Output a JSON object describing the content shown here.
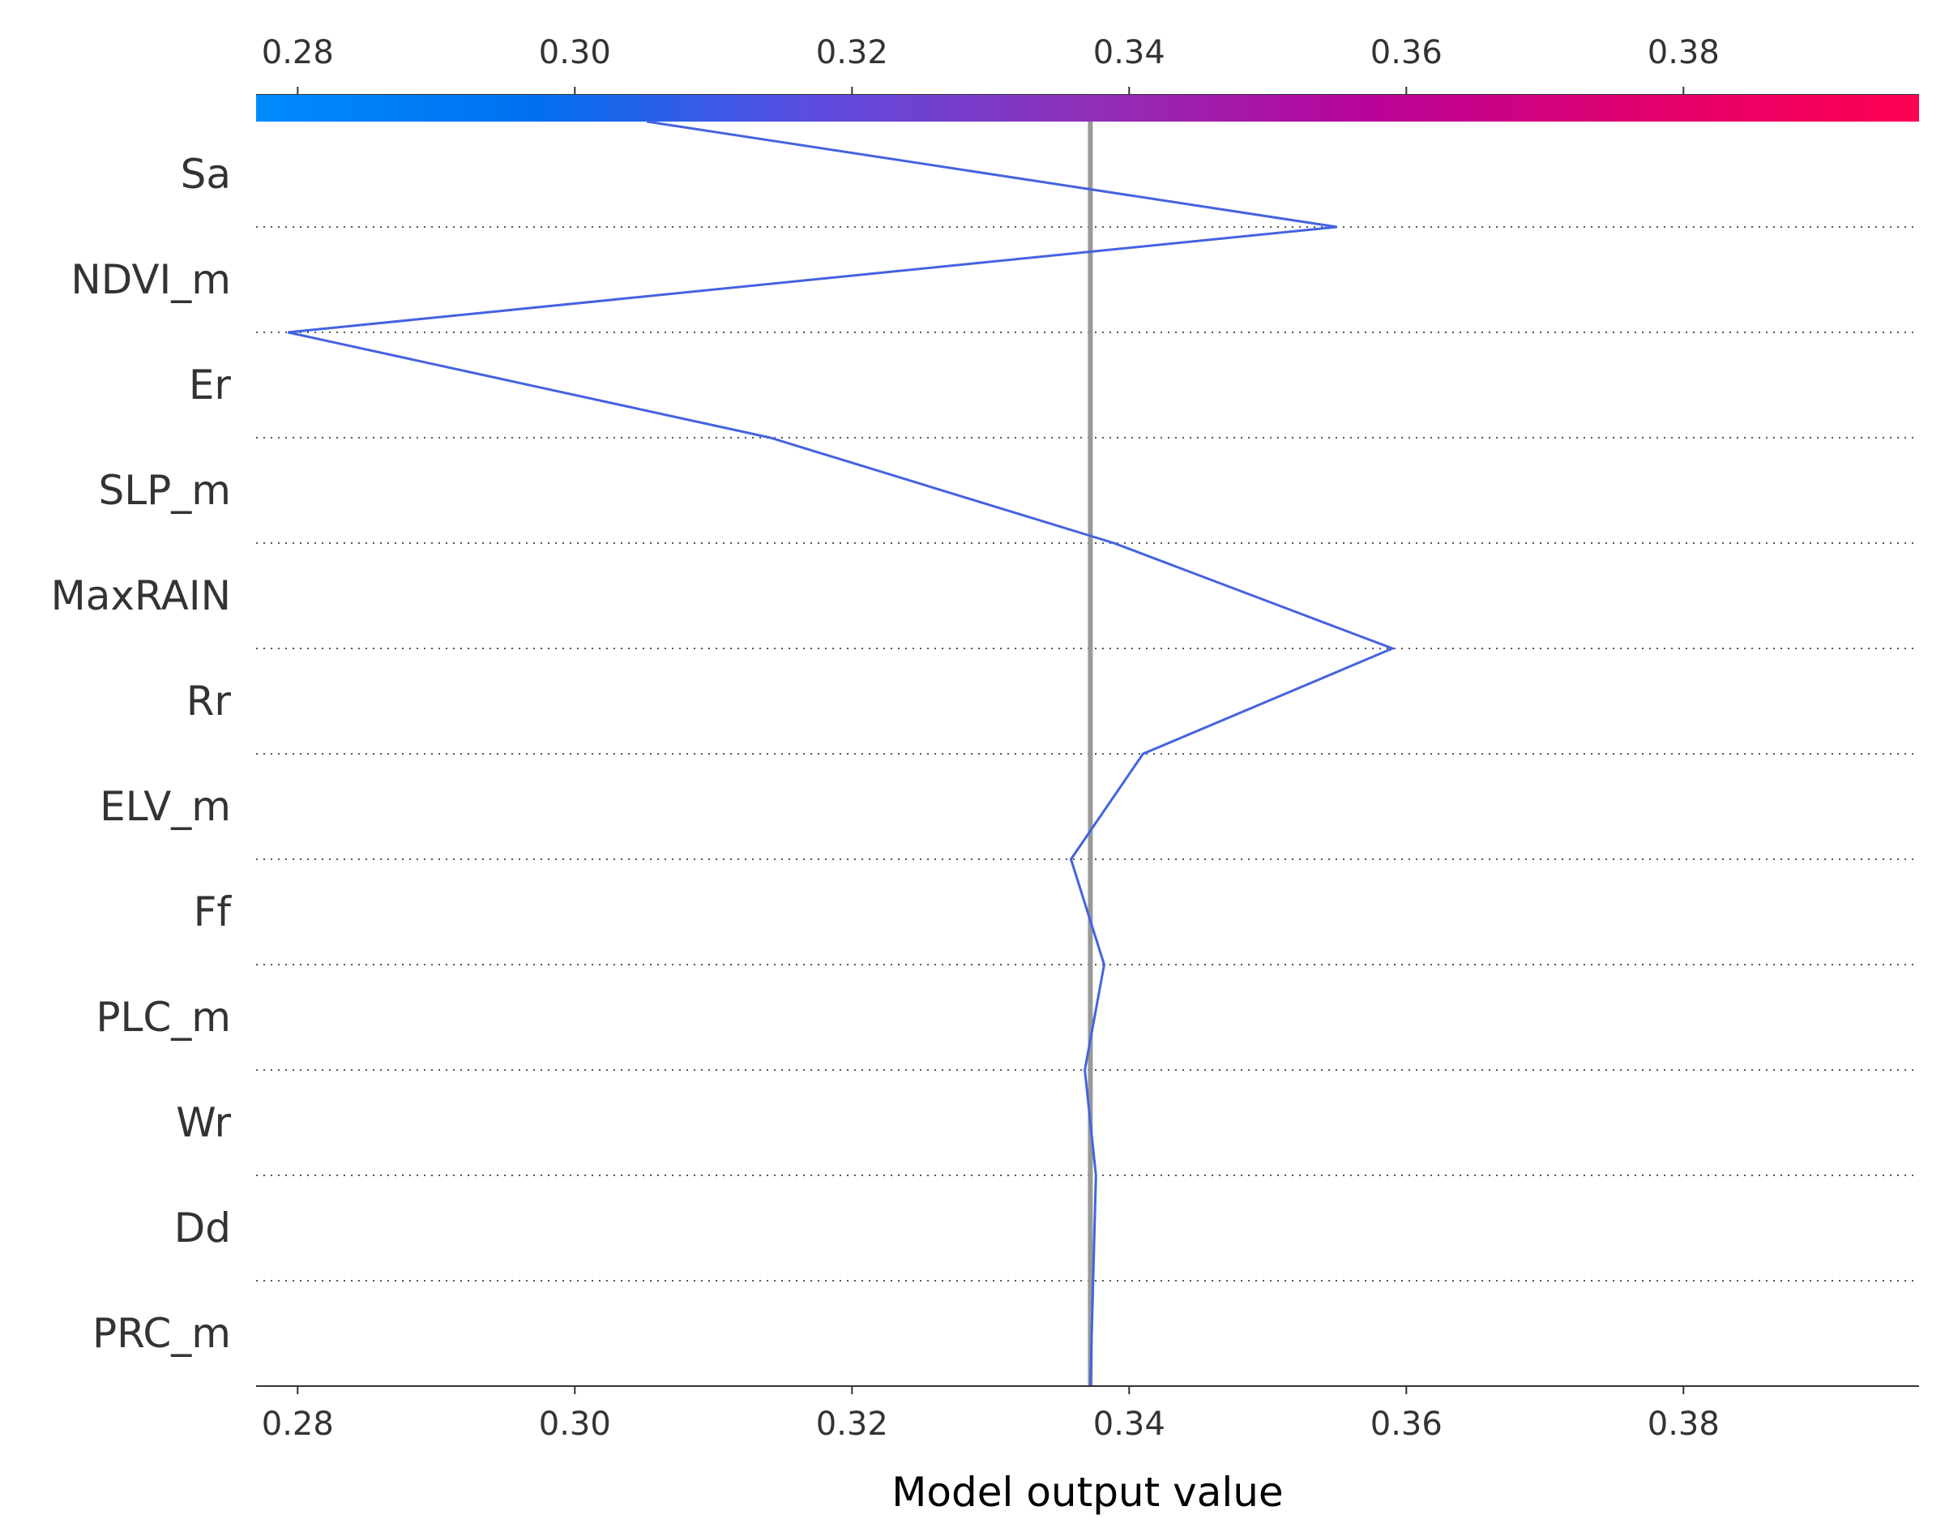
{
  "chart_data": {
    "type": "line",
    "title": "",
    "xlabel": "Model output value",
    "ylabel": "",
    "xlim": [
      0.277,
      0.397
    ],
    "x_ticks": [
      "0.28",
      "0.30",
      "0.32",
      "0.34",
      "0.36",
      "0.38"
    ],
    "x_tick_values": [
      0.28,
      0.3,
      0.32,
      0.34,
      0.36,
      0.38
    ],
    "base_value": 0.3372,
    "features": [
      "Sa",
      "NDVI_m",
      "Er",
      "SLP_m",
      "MaxRAIN",
      "Rr",
      "ELV_m",
      "Ff",
      "PLC_m",
      "Wr",
      "Dd",
      "PRC_m"
    ],
    "series": [
      {
        "values": [
          0.3052,
          0.355,
          0.2793,
          0.3141,
          0.3389,
          0.359,
          0.341,
          0.3358,
          0.3382,
          0.3368,
          0.3376,
          0.3372
        ]
      }
    ],
    "line_color": "#4463e0",
    "base_line_color": "#999999",
    "grid": "dotted horizontal",
    "colorbar": {
      "position": "top",
      "colors": [
        "#008bfb",
        "#0070f0",
        "#5a4de0",
        "#8e30b8",
        "#b8049a",
        "#e0006e",
        "#ff0052"
      ]
    }
  }
}
